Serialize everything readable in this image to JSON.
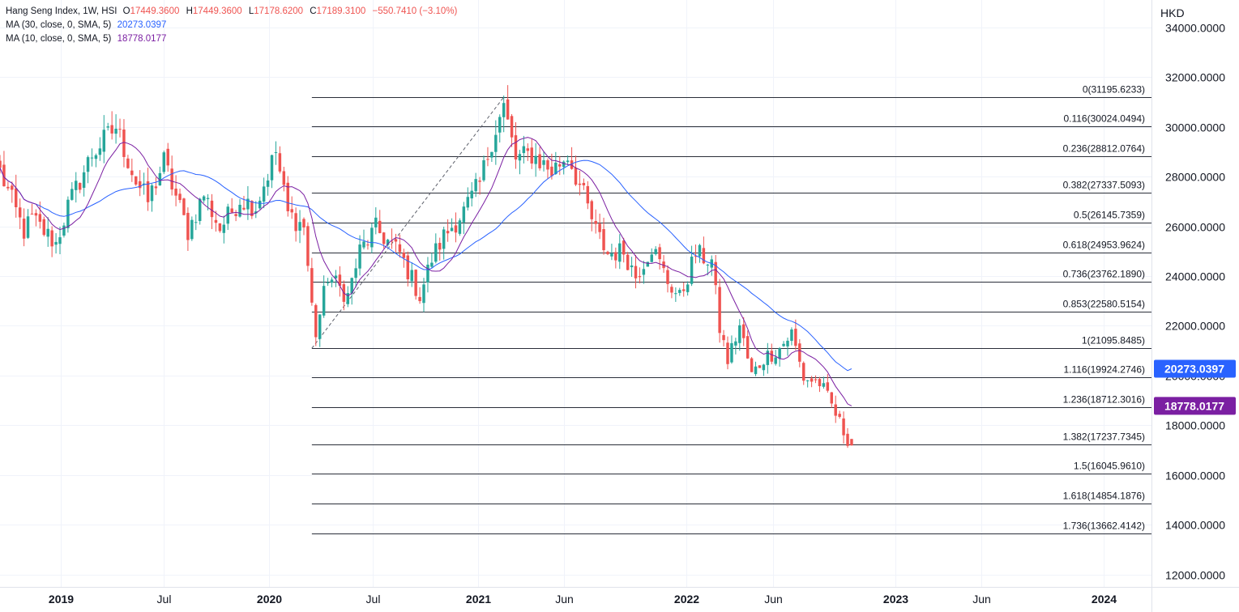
{
  "legend": {
    "title": "Hang Seng Index, 1W, HSI",
    "o_label": "O",
    "o_value": "17449.3600",
    "h_label": "H",
    "h_value": "17449.3600",
    "l_label": "L",
    "l_value": "17178.6200",
    "c_label": "C",
    "c_value": "17189.3100",
    "change": "−550.7410 (−3.10%)",
    "ma30_label": "MA (30, close, 0, SMA, 5)",
    "ma30_value": "20273.0397",
    "ma10_label": "MA (10, close, 0, SMA, 5)",
    "ma10_value": "18778.0177"
  },
  "colors": {
    "up": "#26a69a",
    "down": "#ef5350",
    "ma30": "#2962ff",
    "ma10": "#7b1fa2",
    "grid": "#f0f3fa",
    "fib": "#2a2e39"
  },
  "chart_data": {
    "type": "candlestick",
    "title": "Hang Seng Index, 1W, HSI",
    "y_unit": "HKD",
    "ylim": [
      11500,
      35100
    ],
    "y_ticks": [
      "12000.0000",
      "14000.0000",
      "16000.0000",
      "18000.0000",
      "20000.0000",
      "22000.0000",
      "24000.0000",
      "26000.0000",
      "28000.0000",
      "30000.0000",
      "32000.0000",
      "34000.0000"
    ],
    "x_ticks": [
      {
        "label": "2019",
        "date": "2019-01-01",
        "bold": true
      },
      {
        "label": "Jul",
        "date": "2019-07-01",
        "bold": false
      },
      {
        "label": "2020",
        "date": "2020-01-01",
        "bold": true
      },
      {
        "label": "Jul",
        "date": "2020-07-01",
        "bold": false
      },
      {
        "label": "2021",
        "date": "2021-01-01",
        "bold": true
      },
      {
        "label": "Jun",
        "date": "2021-06-01",
        "bold": false
      },
      {
        "label": "2022",
        "date": "2022-01-01",
        "bold": true
      },
      {
        "label": "Jun",
        "date": "2022-06-01",
        "bold": false
      },
      {
        "label": "2023",
        "date": "2023-01-01",
        "bold": true
      },
      {
        "label": "Jun",
        "date": "2023-06-01",
        "bold": false
      },
      {
        "label": "2024",
        "date": "2024-01-01",
        "bold": true
      }
    ],
    "x_range": [
      "2018-09-17",
      "2024-03-25"
    ],
    "close_anchors": [
      [
        "2018-09-17",
        28200
      ],
      [
        "2018-10-08",
        27000
      ],
      [
        "2018-10-29",
        25800
      ],
      [
        "2018-11-12",
        26300
      ],
      [
        "2018-12-24",
        25300
      ],
      [
        "2019-01-14",
        26800
      ],
      [
        "2019-02-25",
        28900
      ],
      [
        "2019-04-08",
        30000
      ],
      [
        "2019-05-13",
        27800
      ],
      [
        "2019-06-03",
        27000
      ],
      [
        "2019-07-01",
        28600
      ],
      [
        "2019-08-12",
        25800
      ],
      [
        "2019-09-09",
        27300
      ],
      [
        "2019-10-07",
        25900
      ],
      [
        "2019-11-11",
        27100
      ],
      [
        "2019-12-09",
        26800
      ],
      [
        "2020-01-13",
        29000
      ],
      [
        "2020-02-03",
        26500
      ],
      [
        "2020-03-02",
        26000
      ],
      [
        "2020-03-16",
        22800
      ],
      [
        "2020-03-23",
        21700
      ],
      [
        "2020-04-13",
        24000
      ],
      [
        "2020-05-18",
        23200
      ],
      [
        "2020-06-08",
        25000
      ],
      [
        "2020-07-06",
        25900
      ],
      [
        "2020-08-17",
        24900
      ],
      [
        "2020-09-21",
        23200
      ],
      [
        "2020-10-12",
        24700
      ],
      [
        "2020-11-02",
        25600
      ],
      [
        "2020-12-07",
        26600
      ],
      [
        "2021-01-04",
        27700
      ],
      [
        "2021-01-25",
        29500
      ],
      [
        "2021-02-15",
        30800
      ],
      [
        "2021-03-08",
        28700
      ],
      [
        "2021-04-05",
        28900
      ],
      [
        "2021-05-10",
        28200
      ],
      [
        "2021-06-07",
        28900
      ],
      [
        "2021-07-05",
        27200
      ],
      [
        "2021-07-26",
        25800
      ],
      [
        "2021-08-16",
        24900
      ],
      [
        "2021-09-13",
        25000
      ],
      [
        "2021-10-04",
        24000
      ],
      [
        "2021-11-01",
        25200
      ],
      [
        "2021-11-29",
        23800
      ],
      [
        "2021-12-20",
        23100
      ],
      [
        "2022-01-17",
        24900
      ],
      [
        "2022-02-14",
        24600
      ],
      [
        "2022-02-28",
        21900
      ],
      [
        "2022-03-14",
        20600
      ],
      [
        "2022-04-04",
        22000
      ],
      [
        "2022-04-25",
        20000
      ],
      [
        "2022-05-16",
        20700
      ],
      [
        "2022-06-13",
        21100
      ],
      [
        "2022-07-04",
        21700
      ],
      [
        "2022-07-25",
        19900
      ],
      [
        "2022-08-22",
        19700
      ],
      [
        "2022-09-12",
        18800
      ],
      [
        "2022-10-03",
        17740
      ],
      [
        "2022-10-10",
        17450
      ],
      [
        "2022-10-17",
        17189
      ]
    ],
    "last_bar": {
      "open": 17449.36,
      "high": 17449.36,
      "low": 17178.62,
      "close": 17189.31,
      "change": -550.741,
      "change_pct": -3.1
    },
    "series": [
      {
        "name": "MA (30, close, 0, SMA, 5)",
        "last_value": 20273.0397,
        "color": "#2962ff"
      },
      {
        "name": "MA (10, close, 0, SMA, 5)",
        "last_value": 18778.0177,
        "color": "#7b1fa2"
      }
    ],
    "trend_line": {
      "from": [
        "2020-03-16",
        21095.8485
      ],
      "to": [
        "2021-02-15",
        31195.6233
      ],
      "style": "dashed"
    },
    "fib_levels": [
      {
        "label": "0(31195.6233)",
        "value": 31195.6233
      },
      {
        "label": "0.116(30024.0494)",
        "value": 30024.0494
      },
      {
        "label": "0.236(28812.0764)",
        "value": 28812.0764
      },
      {
        "label": "0.382(27337.5093)",
        "value": 27337.5093
      },
      {
        "label": "0.5(26145.7359)",
        "value": 26145.7359
      },
      {
        "label": "0.618(24953.9624)",
        "value": 24953.9624
      },
      {
        "label": "0.736(23762.1890)",
        "value": 23762.189
      },
      {
        "label": "0.853(22580.5154)",
        "value": 22580.5154
      },
      {
        "label": "1(21095.8485)",
        "value": 21095.8485
      },
      {
        "label": "1.116(19924.2746)",
        "value": 19924.2746
      },
      {
        "label": "1.236(18712.3016)",
        "value": 18712.3016
      },
      {
        "label": "1.382(17237.7345)",
        "value": 17237.7345
      },
      {
        "label": "1.5(16045.9610)",
        "value": 16045.961
      },
      {
        "label": "1.618(14854.1876)",
        "value": 14854.1876
      },
      {
        "label": "1.736(13662.4142)",
        "value": 13662.4142
      }
    ],
    "fib_start_date": "2020-03-16",
    "badges": [
      {
        "text": "20273.0397",
        "value": 20273.0397,
        "color": "#2962ff"
      },
      {
        "text": "18778.0177",
        "value": 18778.0177,
        "color": "#7b1fa2"
      }
    ]
  }
}
